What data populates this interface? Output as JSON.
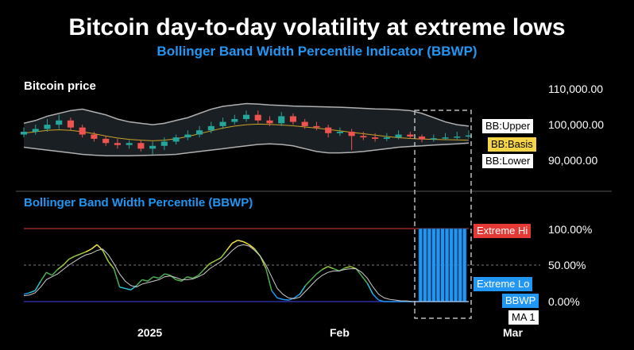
{
  "title": "Bitcoin day-to-day volatility at extreme lows",
  "subtitle": "Bollinger Band Width Percentile Indicator (BBWP)",
  "panels": {
    "price_label": "Bitcoin price",
    "bbwp_label": "Bollinger Band Width Percentile (BBWP)"
  },
  "colors": {
    "background": "#000000",
    "up_candle": "#26a69a",
    "down_candle": "#ef5350",
    "band": "#b0b0b0",
    "basis": "#c9a227",
    "bbwp_blue": "#2196f3",
    "extreme_hi": "#e53935",
    "extreme_lo": "#2196f3",
    "ma": "#cccccc"
  },
  "legend": {
    "bb_upper": "BB:Upper",
    "bb_basis": "BB:Basis",
    "bb_lower": "BB:Lower",
    "extreme_hi": "Extreme Hi",
    "extreme_lo": "Extreme Lo",
    "bbwp": "BBWP",
    "ma": "MA 1"
  },
  "chart_data": [
    {
      "type": "candlestick",
      "title": "Bitcoin price",
      "y_ticks": [
        "110,000.00",
        "100,000.00",
        "90,000.00"
      ],
      "ylim": [
        85000,
        112000
      ],
      "x_ticks": [
        "2025",
        "Feb",
        "Mar"
      ],
      "series": [
        {
          "name": "BB:Upper",
          "values": [
            101500,
            102500,
            104000,
            105000,
            106000,
            106500,
            105500,
            104500,
            103000,
            102000,
            101500,
            101000,
            101500,
            102500,
            103500,
            105000,
            106500,
            107500,
            108000,
            108500,
            108300,
            108000,
            107800,
            107600,
            107500,
            107400,
            107300,
            107200,
            107000,
            106800,
            106600,
            106500,
            106300,
            106000,
            105000,
            103500,
            102000,
            101000,
            100500
          ]
        },
        {
          "name": "BB:Basis",
          "values": [
            98000,
            98500,
            99000,
            99200,
            99000,
            98500,
            97800,
            97000,
            96300,
            95800,
            95500,
            95300,
            95500,
            96000,
            96800,
            97800,
            98800,
            99800,
            100500,
            101000,
            101200,
            101100,
            100900,
            100600,
            100200,
            99800,
            99300,
            98800,
            98300,
            97800,
            97300,
            96800,
            96400,
            96100,
            95900,
            95800,
            95700,
            95600,
            95500
          ]
        },
        {
          "name": "BB:Lower",
          "values": [
            93000,
            92500,
            92000,
            91500,
            91000,
            90500,
            90200,
            90000,
            90000,
            90000,
            90100,
            90200,
            90300,
            90500,
            91000,
            91500,
            92000,
            92500,
            93000,
            93500,
            94000,
            94200,
            94000,
            93500,
            92500,
            91500,
            91000,
            91000,
            91200,
            91500,
            92000,
            92500,
            93000,
            93300,
            93500,
            93800,
            94000,
            94200,
            94500
          ]
        },
        {
          "name": "Close",
          "values": [
            98500,
            99500,
            101000,
            102500,
            100000,
            97500,
            96000,
            94500,
            93800,
            94500,
            92500,
            93500,
            95000,
            96500,
            97500,
            99000,
            100500,
            102000,
            103000,
            104500,
            102500,
            101500,
            104000,
            102000,
            100500,
            100000,
            98000,
            98500,
            97000,
            96500,
            96000,
            96500,
            97500,
            96800,
            95800,
            96200,
            96500,
            96800,
            97200
          ],
          "open": [
            97500,
            98500,
            99500,
            101000,
            102500,
            100000,
            97500,
            96000,
            94500,
            93800,
            94500,
            92500,
            93500,
            95000,
            96500,
            97500,
            99000,
            100500,
            102000,
            103000,
            104500,
            102500,
            101500,
            104000,
            102000,
            100500,
            100000,
            98000,
            98500,
            97000,
            96500,
            96000,
            96500,
            97500,
            96800,
            95800,
            96200,
            96500,
            96800
          ],
          "high": [
            100000,
            101000,
            103000,
            104500,
            103500,
            101000,
            98500,
            97000,
            96000,
            95500,
            95500,
            95000,
            96500,
            97500,
            99000,
            100500,
            102000,
            103500,
            104500,
            106000,
            106000,
            104000,
            105500,
            105000,
            103000,
            102000,
            101000,
            100000,
            99500,
            98500,
            98000,
            98000,
            99000,
            98500,
            97500,
            97500,
            98000,
            98500,
            99000
          ],
          "low": [
            96500,
            97500,
            98500,
            99500,
            99000,
            96500,
            95000,
            93500,
            92500,
            92500,
            91500,
            90500,
            92000,
            94000,
            95500,
            96500,
            98000,
            99500,
            101000,
            102000,
            101500,
            100500,
            100500,
            101000,
            99500,
            99000,
            96500,
            97000,
            92000,
            95500,
            95000,
            95200,
            95800,
            96000,
            94800,
            95000,
            95500,
            95800,
            96000
          ]
        }
      ]
    },
    {
      "type": "line",
      "title": "Bollinger Band Width Percentile (BBWP)",
      "y_ticks": [
        "100.00%",
        "50.00%",
        "0.00%"
      ],
      "ylim": [
        0,
        100
      ],
      "x": [
        0,
        1,
        2,
        3,
        4,
        5,
        6,
        7,
        8,
        9,
        10,
        11,
        12,
        13,
        14,
        15,
        16,
        17,
        18,
        19,
        20,
        21,
        22,
        23,
        24,
        25,
        26,
        27,
        28,
        29,
        30,
        31,
        32,
        33,
        34,
        35,
        36,
        37,
        38,
        39,
        40,
        41,
        42,
        43,
        44,
        45,
        46,
        47,
        48,
        49,
        50,
        51,
        52,
        53,
        54,
        55,
        56,
        57,
        58,
        59,
        60,
        61,
        62,
        63,
        64,
        65,
        66,
        67,
        68,
        69,
        70,
        71,
        72,
        73,
        74,
        75,
        76,
        77,
        78,
        79
      ],
      "series": [
        {
          "name": "BBWP",
          "values": [
            10,
            12,
            15,
            28,
            40,
            36,
            44,
            50,
            58,
            62,
            65,
            68,
            72,
            78,
            70,
            55,
            45,
            20,
            18,
            16,
            22,
            30,
            28,
            34,
            32,
            38,
            36,
            30,
            28,
            34,
            32,
            36,
            44,
            52,
            56,
            60,
            70,
            80,
            84,
            82,
            78,
            72,
            62,
            45,
            15,
            5,
            3,
            2,
            5,
            10,
            22,
            30,
            38,
            44,
            48,
            45,
            42,
            46,
            48,
            45,
            35,
            25,
            10,
            2,
            0,
            0,
            0,
            0,
            0,
            0,
            0,
            0,
            0,
            0,
            0,
            0,
            0,
            0,
            0,
            0
          ]
        },
        {
          "name": "MA 1",
          "values": [
            8,
            9,
            12,
            20,
            30,
            34,
            38,
            44,
            50,
            55,
            60,
            64,
            66,
            70,
            72,
            64,
            52,
            38,
            28,
            22,
            20,
            24,
            26,
            28,
            30,
            34,
            35,
            33,
            30,
            30,
            31,
            34,
            38,
            45,
            50,
            55,
            62,
            70,
            76,
            78,
            76,
            70,
            62,
            50,
            34,
            18,
            10,
            5,
            4,
            6,
            14,
            22,
            30,
            36,
            40,
            42,
            42,
            44,
            45,
            45,
            40,
            32,
            20,
            10,
            5,
            3,
            2,
            1,
            1,
            0,
            0,
            0,
            0,
            0,
            0,
            0,
            0,
            0,
            0,
            0
          ]
        }
      ],
      "annotations": [
        "Extreme Hi",
        "Extreme Lo"
      ],
      "highlight_bars": [
        100,
        100,
        100,
        100,
        100,
        100,
        100,
        100,
        100,
        100,
        100
      ]
    }
  ]
}
